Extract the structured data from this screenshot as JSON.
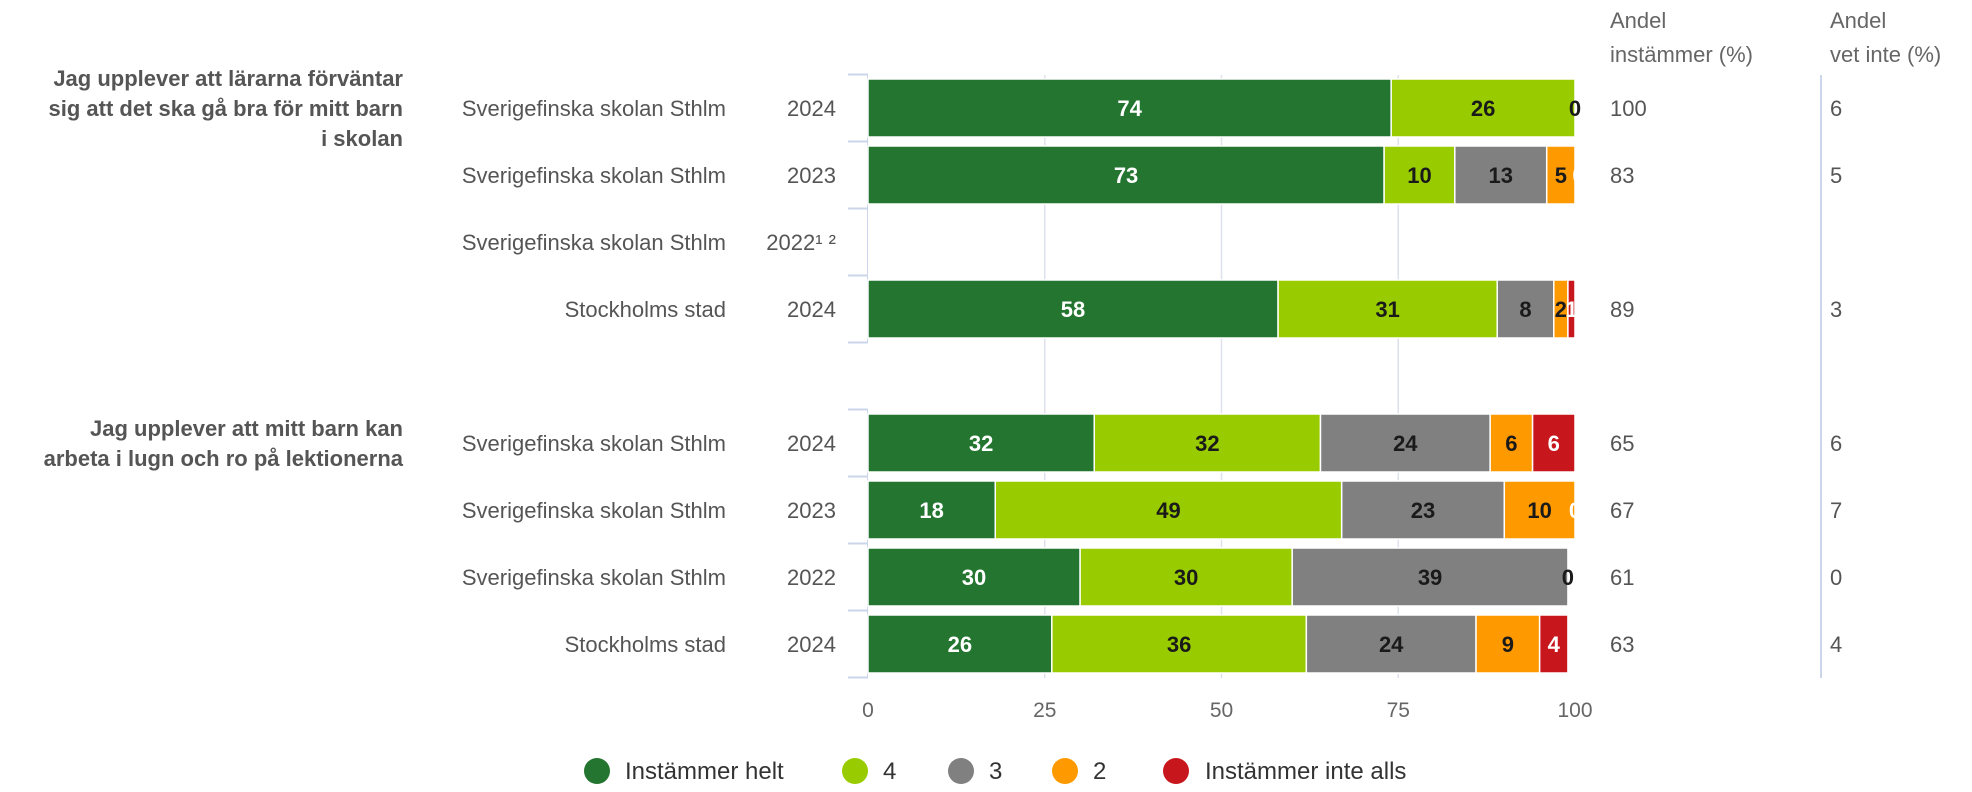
{
  "chart_data": {
    "type": "bar",
    "orientation": "horizontal",
    "stacked": true,
    "xlim": [
      0,
      100
    ],
    "x_ticks": [
      "0",
      "25",
      "50",
      "75",
      "100"
    ],
    "grid": true,
    "legend_position": "bottom",
    "column_headers": {
      "andel_instammer": [
        "Andel",
        "instämmer (%)"
      ],
      "andel_vet_inte": [
        "Andel",
        "vet inte (%)"
      ]
    },
    "series": [
      {
        "name": "Instämmer helt",
        "color": "#23752f"
      },
      {
        "name": "4",
        "color": "#99cc00"
      },
      {
        "name": "3",
        "color": "#808080"
      },
      {
        "name": "2",
        "color": "#ff9900"
      },
      {
        "name": "Instämmer inte alls",
        "color": "#c8161d"
      }
    ],
    "groups": [
      {
        "title": [
          "Jag upplever att lärarna förväntar",
          "sig att det ska gå bra för mitt barn",
          "i skolan"
        ],
        "rows": [
          {
            "school": "Sverigefinska skolan Sthlm",
            "year": "2024",
            "values": [
              74,
              26,
              0,
              0,
              0
            ],
            "labels": [
              "74",
              "26",
              "0",
              "",
              ""
            ],
            "andel_instammer": "100",
            "andel_vet_inte": "6"
          },
          {
            "school": "Sverigefinska skolan Sthlm",
            "year": "2023",
            "values": [
              73,
              10,
              13,
              5,
              0
            ],
            "labels": [
              "73",
              "10",
              "13",
              "5",
              "0"
            ],
            "andel_instammer": "83",
            "andel_vet_inte": "5"
          },
          {
            "school": "Sverigefinska skolan Sthlm",
            "year": "2022¹ ²",
            "values": null,
            "labels": [],
            "andel_instammer": "",
            "andel_vet_inte": ""
          },
          {
            "school": "Stockholms stad",
            "year": "2024",
            "values": [
              58,
              31,
              8,
              2,
              1
            ],
            "labels": [
              "58",
              "31",
              "8",
              "2",
              "1"
            ],
            "andel_instammer": "89",
            "andel_vet_inte": "3"
          }
        ]
      },
      {
        "title": [
          "Jag upplever att mitt barn kan",
          "arbeta i lugn och ro på lektionerna"
        ],
        "rows": [
          {
            "school": "Sverigefinska skolan Sthlm",
            "year": "2024",
            "values": [
              32,
              32,
              24,
              6,
              6
            ],
            "labels": [
              "32",
              "32",
              "24",
              "6",
              "6"
            ],
            "andel_instammer": "65",
            "andel_vet_inte": "6"
          },
          {
            "school": "Sverigefinska skolan Sthlm",
            "year": "2023",
            "values": [
              18,
              49,
              23,
              10,
              0
            ],
            "labels": [
              "18",
              "49",
              "23",
              "10",
              "0"
            ],
            "andel_instammer": "67",
            "andel_vet_inte": "7"
          },
          {
            "school": "Sverigefinska skolan Sthlm",
            "year": "2022",
            "values": [
              30,
              30,
              39,
              0,
              0
            ],
            "labels": [
              "30",
              "30",
              "39",
              "0",
              ""
            ],
            "andel_instammer": "61",
            "andel_vet_inte": "0"
          },
          {
            "school": "Stockholms stad",
            "year": "2024",
            "values": [
              26,
              36,
              24,
              9,
              4
            ],
            "labels": [
              "26",
              "36",
              "24",
              "9",
              "4"
            ],
            "andel_instammer": "63",
            "andel_vet_inte": "4"
          }
        ]
      }
    ]
  }
}
